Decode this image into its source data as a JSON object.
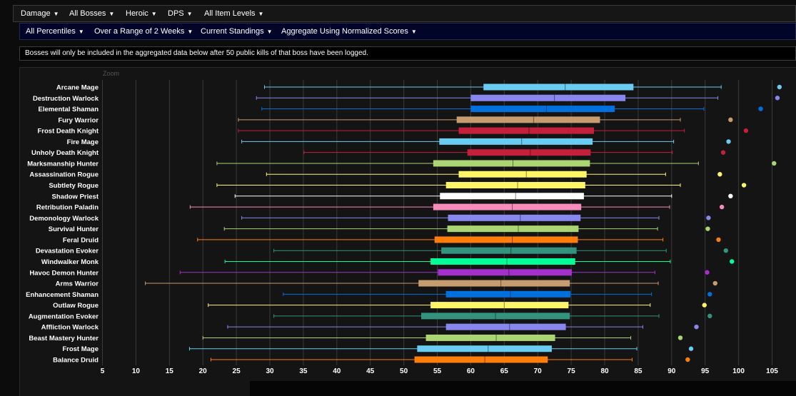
{
  "filters_row1": [
    {
      "label": "Damage"
    },
    {
      "label": "All Bosses"
    },
    {
      "label": "Heroic"
    },
    {
      "label": "DPS"
    },
    {
      "label": "All Item Levels"
    }
  ],
  "filters_row2": [
    {
      "label": "All Percentiles"
    },
    {
      "label": "Over a Range of 2 Weeks"
    },
    {
      "label": "Current Standings"
    },
    {
      "label": "Aggregate Using Normalized Scores"
    }
  ],
  "notice": "Bosses will only be included in the aggregated data below after 50 public kills of that boss have been logged.",
  "zoom_label": "Zoom",
  "chart_data": {
    "type": "boxplot",
    "xlim": [
      5,
      107
    ],
    "xticks": [
      5,
      10,
      15,
      20,
      25,
      30,
      35,
      40,
      45,
      50,
      55,
      60,
      65,
      70,
      75,
      80,
      85,
      90,
      95,
      100,
      105
    ],
    "grid": true,
    "series": [
      {
        "name": "Arcane Mage",
        "color": "#69ccf0",
        "min": 29.2,
        "q1": 61.9,
        "median": 74.1,
        "q3": 84.3,
        "max": 97.4,
        "outlier": 106.1
      },
      {
        "name": "Destruction Warlock",
        "color": "#8787ed",
        "min": 28.0,
        "q1": 60.0,
        "median": 72.5,
        "q3": 83.1,
        "max": 96.9,
        "outlier": 105.8
      },
      {
        "name": "Elemental Shaman",
        "color": "#0070de",
        "min": 28.8,
        "q1": 60.0,
        "median": 71.3,
        "q3": 81.5,
        "max": 94.8,
        "outlier": 103.3
      },
      {
        "name": "Fury Warrior",
        "color": "#c79c6e",
        "min": 25.3,
        "q1": 57.9,
        "median": 69.4,
        "q3": 79.3,
        "max": 91.3,
        "outlier": 98.8
      },
      {
        "name": "Frost Death Knight",
        "color": "#c41f3b",
        "min": 25.3,
        "q1": 58.2,
        "median": 68.7,
        "q3": 78.4,
        "max": 91.9,
        "outlier": 101.1
      },
      {
        "name": "Fire Mage",
        "color": "#69ccf0",
        "min": 25.8,
        "q1": 55.3,
        "median": 67.6,
        "q3": 78.2,
        "max": 90.3,
        "outlier": 98.5
      },
      {
        "name": "Unholy Death Knight",
        "color": "#c41f3b",
        "min": 35.1,
        "q1": 59.5,
        "median": 68.9,
        "q3": 77.9,
        "max": 90.1,
        "outlier": 97.7
      },
      {
        "name": "Marksmanship Hunter",
        "color": "#abd473",
        "min": 22.1,
        "q1": 54.4,
        "median": 66.3,
        "q3": 77.8,
        "max": 94.0,
        "outlier": 105.3
      },
      {
        "name": "Assassination Rogue",
        "color": "#fff569",
        "min": 29.5,
        "q1": 58.2,
        "median": 68.3,
        "q3": 77.3,
        "max": 89.1,
        "outlier": 97.2
      },
      {
        "name": "Subtlety Rogue",
        "color": "#fff569",
        "min": 22.1,
        "q1": 56.3,
        "median": 67.0,
        "q3": 77.1,
        "max": 91.3,
        "outlier": 100.8
      },
      {
        "name": "Shadow Priest",
        "color": "#ffffff",
        "min": 24.8,
        "q1": 55.4,
        "median": 66.7,
        "q3": 76.9,
        "max": 90.0,
        "outlier": 98.8
      },
      {
        "name": "Retribution Paladin",
        "color": "#f58cba",
        "min": 18.1,
        "q1": 54.4,
        "median": 66.2,
        "q3": 76.5,
        "max": 89.7,
        "outlier": 97.5
      },
      {
        "name": "Demonology Warlock",
        "color": "#8787ed",
        "min": 25.8,
        "q1": 56.6,
        "median": 67.4,
        "q3": 76.4,
        "max": 88.1,
        "outlier": 95.5
      },
      {
        "name": "Survival Hunter",
        "color": "#abd473",
        "min": 23.2,
        "q1": 56.5,
        "median": 67.1,
        "q3": 76.1,
        "max": 87.9,
        "outlier": 95.4
      },
      {
        "name": "Feral Druid",
        "color": "#ff7d0a",
        "min": 19.2,
        "q1": 54.6,
        "median": 66.2,
        "q3": 76.0,
        "max": 88.7,
        "outlier": 97.0
      },
      {
        "name": "Devastation Evoker",
        "color": "#33937f",
        "min": 30.6,
        "q1": 55.6,
        "median": 66.0,
        "q3": 75.8,
        "max": 89.2,
        "outlier": 98.1
      },
      {
        "name": "Windwalker Monk",
        "color": "#00ff96",
        "min": 23.3,
        "q1": 54.0,
        "median": 65.4,
        "q3": 75.6,
        "max": 89.8,
        "outlier": 99.0
      },
      {
        "name": "Havoc Demon Hunter",
        "color": "#a330c9",
        "min": 16.6,
        "q1": 55.1,
        "median": 65.7,
        "q3": 75.1,
        "max": 87.5,
        "outlier": 95.3
      },
      {
        "name": "Arms Warrior",
        "color": "#c79c6e",
        "min": 11.4,
        "q1": 52.2,
        "median": 64.5,
        "q3": 74.8,
        "max": 88.0,
        "outlier": 96.5
      },
      {
        "name": "Enhancement Shaman",
        "color": "#0070de",
        "min": 32.0,
        "q1": 56.3,
        "median": 65.9,
        "q3": 74.9,
        "max": 87.0,
        "outlier": 95.7
      },
      {
        "name": "Outlaw Rogue",
        "color": "#fff569",
        "min": 20.8,
        "q1": 54.0,
        "median": 65.0,
        "q3": 74.6,
        "max": 86.8,
        "outlier": 94.9
      },
      {
        "name": "Augmentation Evoker",
        "color": "#33937f",
        "min": 30.6,
        "q1": 52.6,
        "median": 63.7,
        "q3": 74.8,
        "max": 88.1,
        "outlier": 95.7
      },
      {
        "name": "Affliction Warlock",
        "color": "#8787ed",
        "min": 23.7,
        "q1": 56.3,
        "median": 65.8,
        "q3": 74.2,
        "max": 85.7,
        "outlier": 93.7
      },
      {
        "name": "Beast Mastery Hunter",
        "color": "#abd473",
        "min": 20.0,
        "q1": 53.3,
        "median": 63.8,
        "q3": 72.6,
        "max": 83.9,
        "outlier": 91.3
      },
      {
        "name": "Frost Mage",
        "color": "#69ccf0",
        "min": 18.0,
        "q1": 52.0,
        "median": 62.6,
        "q3": 72.1,
        "max": 84.8,
        "outlier": 92.9
      },
      {
        "name": "Balance Druid",
        "color": "#ff7d0a",
        "min": 21.2,
        "q1": 51.6,
        "median": 62.1,
        "q3": 71.5,
        "max": 84.1,
        "outlier": 92.4
      }
    ]
  }
}
